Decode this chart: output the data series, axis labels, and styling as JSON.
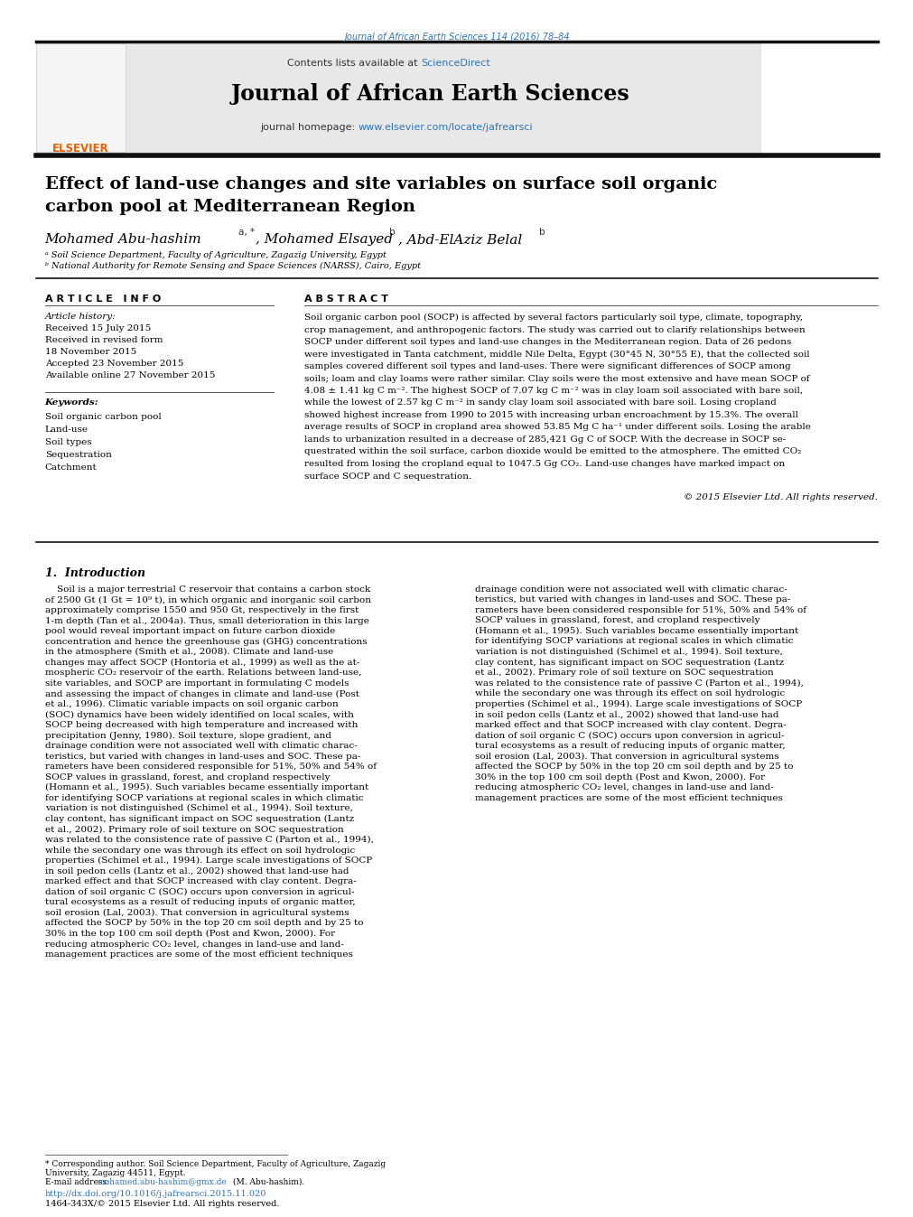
{
  "page_width": 9.92,
  "page_height": 13.23,
  "background_color": "#ffffff",
  "journal_ref_text": "Journal of African Earth Sciences 114 (2016) 78–84",
  "journal_ref_color": "#2e75b6",
  "contents_text": "Contents lists available at ",
  "sciencedirect_text": "ScienceDirect",
  "sciencedirect_color": "#2e75b6",
  "journal_name": "Journal of African Earth Sciences",
  "journal_homepage_label": "journal homepage: ",
  "journal_homepage_url": "www.elsevier.com/locate/jafrearsci",
  "journal_homepage_color": "#2e75b6",
  "header_bg_color": "#e8e8e8",
  "thick_bar_color": "#1a1a1a",
  "title_line1": "Effect of land-use changes and site variables on surface soil organic",
  "title_line2": "carbon pool at Mediterranean Region",
  "title_fontsize": 14,
  "authors_text": "Mohamed Abu-hashim",
  "author_a_super": "a, *",
  "author2_text": ", Mohamed Elsayed",
  "author2_super": "b",
  "author3_text": ", Abd-ElAziz Belal",
  "author3_super": "b",
  "affil_a": "ᵃ Soil Science Department, Faculty of Agriculture, Zagazig University, Egypt",
  "affil_b": "ᵇ National Authority for Remote Sensing and Space Sciences (NARSS), Cairo, Egypt",
  "article_info_title": "A R T I C L E   I N F O",
  "abstract_title": "A B S T R A C T",
  "article_history_label": "Article history:",
  "history_lines": [
    "Received 15 July 2015",
    "Received in revised form",
    "18 November 2015",
    "Accepted 23 November 2015",
    "Available online 27 November 2015"
  ],
  "keywords_label": "Keywords:",
  "keywords": [
    "Soil organic carbon pool",
    "Land-use",
    "Soil types",
    "Sequestration",
    "Catchment"
  ],
  "abstract_lines": [
    "Soil organic carbon pool (SOCP) is affected by several factors particularly soil type, climate, topography,",
    "crop management, and anthropogenic factors. The study was carried out to clarify relationships between",
    "SOCP under different soil types and land-use changes in the Mediterranean region. Data of 26 pedons",
    "were investigated in Tanta catchment, middle Nile Delta, Egypt (30°45 N, 30°55 E), that the collected soil",
    "samples covered different soil types and land-uses. There were significant differences of SOCP among",
    "soils; loam and clay loams were rather similar. Clay soils were the most extensive and have mean SOCP of",
    "4.08 ± 1.41 kg C m⁻². The highest SOCP of 7.07 kg C m⁻² was in clay loam soil associated with bare soil,",
    "while the lowest of 2.57 kg C m⁻² in sandy clay loam soil associated with bare soil. Losing cropland",
    "showed highest increase from 1990 to 2015 with increasing urban encroachment by 15.3%. The overall",
    "average results of SOCP in cropland area showed 53.85 Mg C ha⁻¹ under different soils. Losing the arable",
    "lands to urbanization resulted in a decrease of 285,421 Gg C of SOCP. With the decrease in SOCP se-",
    "questrated within the soil surface, carbon dioxide would be emitted to the atmosphere. The emitted CO₂",
    "resulted from losing the cropland equal to 1047.5 Gg CO₂. Land-use changes have marked impact on",
    "surface SOCP and C sequestration."
  ],
  "copyright_text": "© 2015 Elsevier Ltd. All rights reserved.",
  "section1_title": "1.  Introduction",
  "intro_col1_lines": [
    "    Soil is a major terrestrial C reservoir that contains a carbon stock",
    "of 2500 Gt (1 Gt = 10⁹ t), in which organic and inorganic soil carbon",
    "approximately comprise 1550 and 950 Gt, respectively in the first",
    "1-m depth (Tan et al., 2004a). Thus, small deterioration in this large",
    "pool would reveal important impact on future carbon dioxide",
    "concentration and hence the greenhouse gas (GHG) concentrations",
    "in the atmosphere (Smith et al., 2008). Climate and land-use",
    "changes may affect SOCP (Hontoria et al., 1999) as well as the at-",
    "mospheric CO₂ reservoir of the earth. Relations between land-use,",
    "site variables, and SOCP are important in formulating C models",
    "and assessing the impact of changes in climate and land-use (Post",
    "et al., 1996). Climatic variable impacts on soil organic carbon",
    "(SOC) dynamics have been widely identified on local scales, with",
    "SOCP being decreased with high temperature and increased with",
    "precipitation (Jenny, 1980). Soil texture, slope gradient, and",
    "drainage condition were not associated well with climatic charac-",
    "teristics, but varied with changes in land-uses and SOC. These pa-",
    "rameters have been considered responsible for 51%, 50% and 54% of",
    "SOCP values in grassland, forest, and cropland respectively",
    "(Homann et al., 1995). Such variables became essentially important",
    "for identifying SOCP variations at regional scales in which climatic",
    "variation is not distinguished (Schimel et al., 1994). Soil texture,",
    "clay content, has significant impact on SOC sequestration (Lantz",
    "et al., 2002). Primary role of soil texture on SOC sequestration",
    "was related to the consistence rate of passive C (Parton et al., 1994),",
    "while the secondary one was through its effect on soil hydrologic",
    "properties (Schimel et al., 1994). Large scale investigations of SOCP",
    "in soil pedon cells (Lantz et al., 2002) showed that land-use had",
    "marked effect and that SOCP increased with clay content. Degra-",
    "dation of soil organic C (SOC) occurs upon conversion in agricul-",
    "tural ecosystems as a result of reducing inputs of organic matter,",
    "soil erosion (Lal, 2003). That conversion in agricultural systems",
    "affected the SOCP by 50% in the top 20 cm soil depth and by 25 to",
    "30% in the top 100 cm soil depth (Post and Kwon, 2000). For",
    "reducing atmospheric CO₂ level, changes in land-use and land-",
    "management practices are some of the most efficient techniques"
  ],
  "intro_col2_lines": [
    "drainage condition were not associated well with climatic charac-",
    "teristics, but varied with changes in land-uses and SOC. These pa-",
    "rameters have been considered responsible for 51%, 50% and 54% of",
    "SOCP values in grassland, forest, and cropland respectively",
    "(Homann et al., 1995). Such variables became essentially important",
    "for identifying SOCP variations at regional scales in which climatic",
    "variation is not distinguished (Schimel et al., 1994). Soil texture,",
    "clay content, has significant impact on SOC sequestration (Lantz",
    "et al., 2002). Primary role of soil texture on SOC sequestration",
    "was related to the consistence rate of passive C (Parton et al., 1994),",
    "while the secondary one was through its effect on soil hydrologic",
    "properties (Schimel et al., 1994). Large scale investigations of SOCP",
    "in soil pedon cells (Lantz et al., 2002) showed that land-use had",
    "marked effect and that SOCP increased with clay content. Degra-",
    "dation of soil organic C (SOC) occurs upon conversion in agricul-",
    "tural ecosystems as a result of reducing inputs of organic matter,",
    "soil erosion (Lal, 2003). That conversion in agricultural systems",
    "affected the SOCP by 50% in the top 20 cm soil depth and by 25 to",
    "30% in the top 100 cm soil depth (Post and Kwon, 2000). For",
    "reducing atmospheric CO₂ level, changes in land-use and land-",
    "management practices are some of the most efficient techniques"
  ],
  "footer_note1": "* Corresponding author. Soil Science Department, Faculty of Agriculture, Zagazig",
  "footer_note2": "University, Zagazig 44511, Egypt.",
  "footer_email_label": "E-mail address: ",
  "footer_email": "mohamed.abu-hashim@gmx.de",
  "footer_email_suffix": " (M. Abu-hashim).",
  "footer_doi": "http://dx.doi.org/10.1016/j.jafrearsci.2015.11.020",
  "footer_issn": "1464-343X/© 2015 Elsevier Ltd. All rights reserved.",
  "doi_color": "#2e75b6",
  "text_color": "#000000",
  "link_color": "#2e75b6"
}
